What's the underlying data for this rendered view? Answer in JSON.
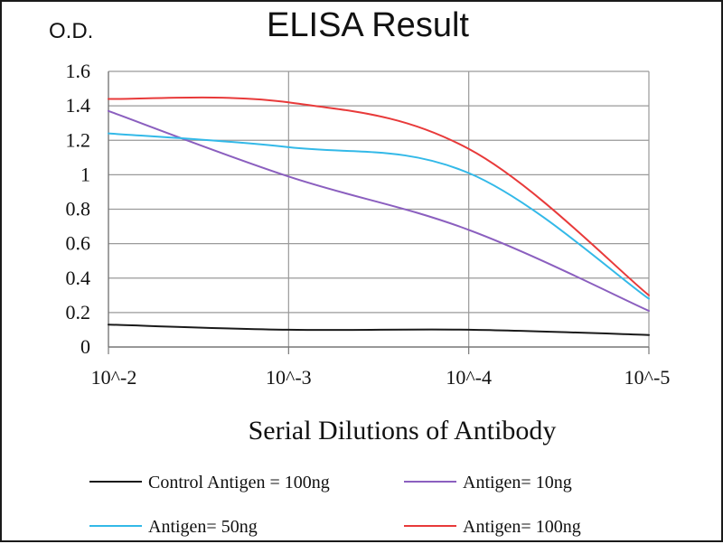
{
  "chart_data": {
    "type": "line",
    "title": "ELISA Result",
    "ylabel": "O.D.",
    "xlabel": "Serial Dilutions  of Antibody",
    "categories": [
      "10^-2",
      "10^-3",
      "10^-4",
      "10^-5"
    ],
    "ylim": [
      0,
      1.6
    ],
    "yticks": [
      "0",
      "0.2",
      "0.4",
      "0.6",
      "0.8",
      "1",
      "1.2",
      "1.4",
      "1.6"
    ],
    "grid": true,
    "legend_position": "bottom",
    "series": [
      {
        "name": "Control Antigen = 100ng",
        "color": "#1a1a1a",
        "x": [
          1,
          2,
          3,
          4
        ],
        "values": [
          0.13,
          0.1,
          0.1,
          0.07
        ]
      },
      {
        "name": "Antigen= 10ng",
        "color": "#8b5fbf",
        "x": [
          1,
          2,
          3,
          4
        ],
        "values": [
          1.37,
          0.99,
          0.68,
          0.21
        ]
      },
      {
        "name": "Antigen= 50ng",
        "color": "#33b9e8",
        "x": [
          1,
          2,
          3,
          4
        ],
        "values": [
          1.24,
          1.16,
          1.01,
          0.28
        ]
      },
      {
        "name": "Antigen= 100ng",
        "color": "#e83a3a",
        "x": [
          1,
          2,
          3,
          4
        ],
        "values": [
          1.44,
          1.42,
          1.15,
          0.3
        ]
      }
    ]
  }
}
